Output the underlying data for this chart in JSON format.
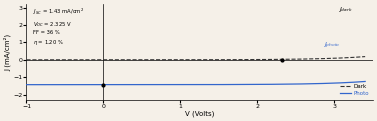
{
  "title": "",
  "xlabel": "V (Volts)",
  "ylabel": "J (mA/cm²)",
  "xlim": [
    -1,
    3.5
  ],
  "ylim": [
    -2.3,
    3.2
  ],
  "xticks": [
    -1,
    0,
    1,
    2,
    3
  ],
  "yticks": [
    -2,
    -1,
    0,
    1,
    2,
    3
  ],
  "annotation": "JₛC = 1.43 mA/cm²\nVᵒC = 2.325 V\nFF = 36 %\nη = 1.20 %",
  "jsc": 1.43,
  "voc": 2.325,
  "ff": 36,
  "eta": 1.2,
  "dark_color": "#333333",
  "photo_color": "#3366cc",
  "background": "#f5f0e8",
  "legend_dark": "Dark",
  "legend_photo": "Photo",
  "label_jdark": "Jₐₑₐₑₖ",
  "label_jphoto": "Jₚℎₒₜₒ"
}
